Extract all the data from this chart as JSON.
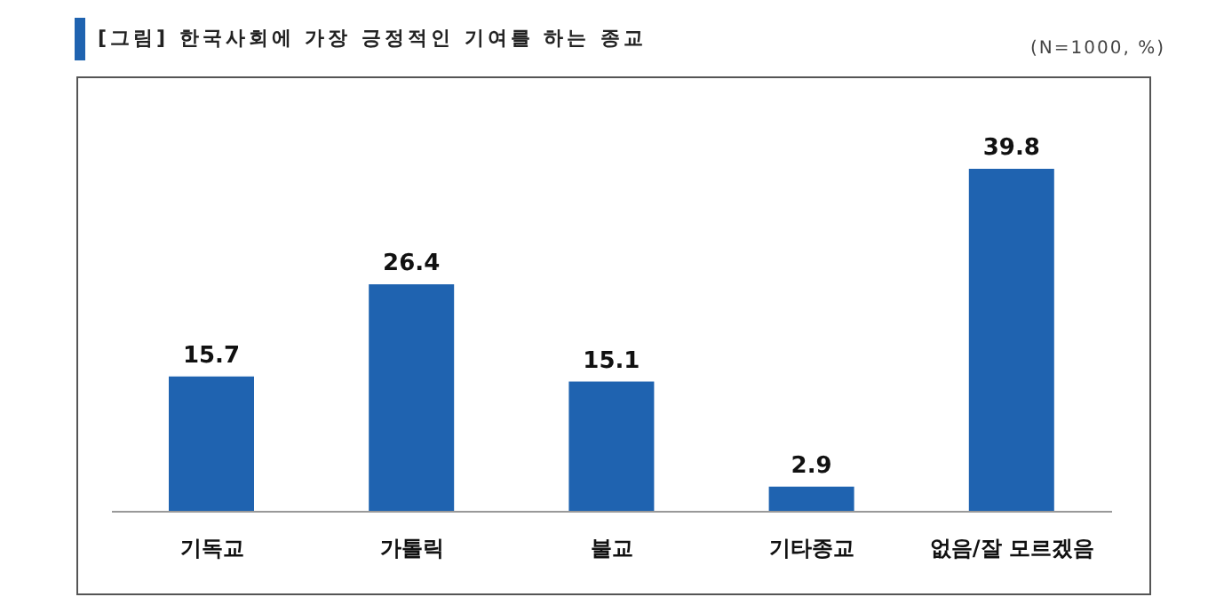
{
  "chart_data": {
    "type": "bar",
    "title": "[그림] 한국사회에 가장 긍정적인 기여를 하는 종교",
    "subtitle": "(N=1000, %)",
    "categories": [
      "기독교",
      "가톨릭",
      "불교",
      "기타종교",
      "없음/잘 모르겠음"
    ],
    "values": [
      15.7,
      26.4,
      15.1,
      2.9,
      39.8
    ],
    "color": "#1f63b0",
    "data_labels": true,
    "grid": false,
    "legend": false
  }
}
